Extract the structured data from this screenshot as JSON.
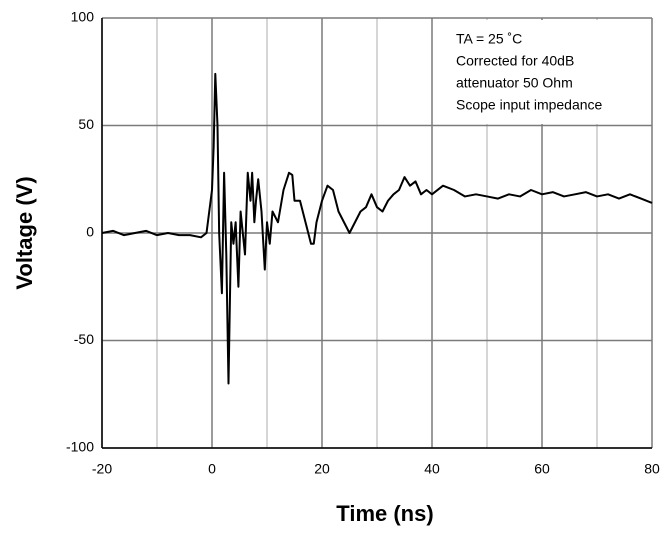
{
  "chart_data": {
    "type": "line",
    "xlabel": "Time  (ns)",
    "ylabel": "Voltage (V)",
    "annotation": [
      "TA = 25 ˚C",
      "Corrected for 40dB",
      "attenuator 50 Ohm",
      "Scope input impedance"
    ],
    "xlim": [
      -20,
      80
    ],
    "ylim": [
      -100,
      100
    ],
    "xticks": [
      -20,
      0,
      20,
      40,
      60,
      80
    ],
    "xminorticks": [
      -10,
      10,
      30,
      50,
      70
    ],
    "yticks": [
      -100,
      -50,
      0,
      50,
      100
    ],
    "grid": true,
    "series": [
      {
        "color": "#000000",
        "x": [
          -20,
          -18,
          -16,
          -14,
          -12,
          -10,
          -8,
          -6,
          -4,
          -2,
          -1,
          0,
          0.3,
          0.6,
          1,
          1.3,
          1.8,
          2.2,
          2.6,
          3,
          3.5,
          3.9,
          4.3,
          4.8,
          5.2,
          5.6,
          6,
          6.5,
          7,
          7.3,
          7.7,
          8,
          8.4,
          9,
          9.6,
          10,
          10.5,
          11,
          12,
          13,
          14,
          14.6,
          15,
          16,
          17,
          18,
          18.5,
          19,
          20,
          21,
          22,
          23,
          24,
          25,
          26,
          27,
          28,
          29,
          30,
          31,
          32,
          33,
          34,
          35,
          36,
          37,
          38,
          39,
          40,
          42,
          44,
          46,
          48,
          50,
          52,
          54,
          56,
          58,
          60,
          62,
          64,
          66,
          68,
          70,
          72,
          74,
          76,
          78,
          80
        ],
        "values": [
          0,
          1,
          -1,
          0,
          1,
          -1,
          0,
          -1,
          -1,
          -2,
          0,
          20,
          40,
          74,
          50,
          0,
          -28,
          28,
          -10,
          -70,
          5,
          -5,
          5,
          -25,
          10,
          0,
          -10,
          28,
          15,
          28,
          5,
          15,
          25,
          10,
          -17,
          5,
          -5,
          10,
          5,
          20,
          28,
          27,
          15,
          15,
          5,
          -5,
          -5,
          5,
          15,
          22,
          20,
          10,
          5,
          0,
          5,
          10,
          12,
          18,
          12,
          10,
          15,
          18,
          20,
          26,
          22,
          24,
          18,
          20,
          18,
          22,
          20,
          17,
          18,
          17,
          16,
          18,
          17,
          20,
          18,
          19,
          17,
          18,
          19,
          17,
          18,
          16,
          18,
          16,
          14
        ]
      }
    ]
  }
}
